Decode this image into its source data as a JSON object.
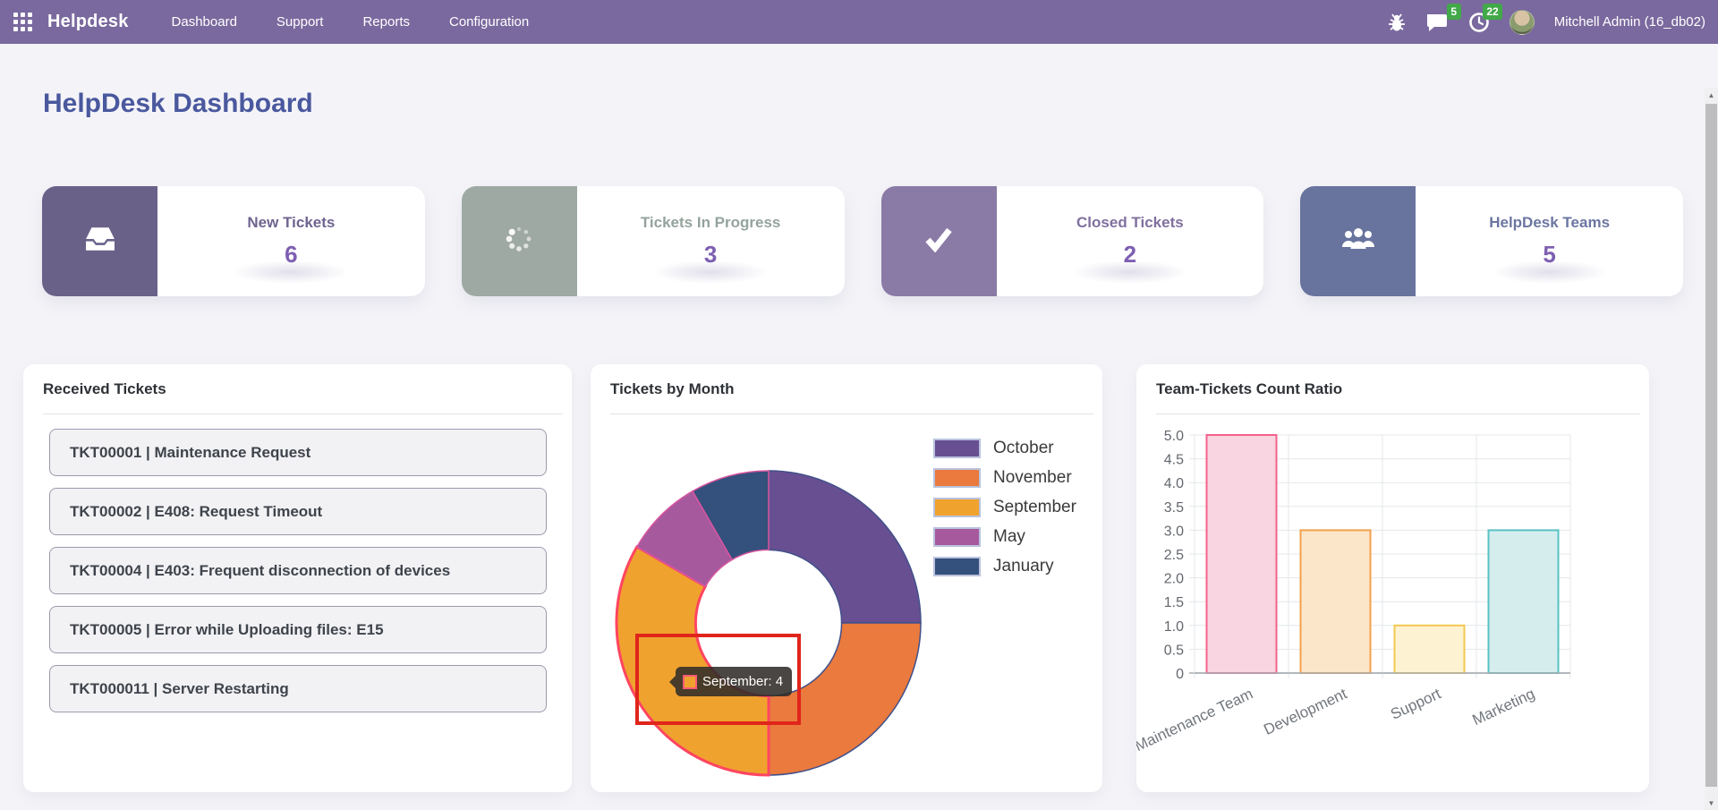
{
  "navbar": {
    "brand": "Helpdesk",
    "menu": [
      "Dashboard",
      "Support",
      "Reports",
      "Configuration"
    ],
    "badges": {
      "chat": "5",
      "activities": "22"
    },
    "user": "Mitchell Admin (16_db02)"
  },
  "page": {
    "title": "HelpDesk Dashboard"
  },
  "kpis": [
    {
      "label": "New Tickets",
      "value": "6",
      "icon": "inbox-icon",
      "accent": "#6a6189",
      "label_color": "#6f648f"
    },
    {
      "label": "Tickets In Progress",
      "value": "3",
      "icon": "spinner-icon",
      "accent": "#9fa9a3",
      "label_color": "#94a39c"
    },
    {
      "label": "Closed Tickets",
      "value": "2",
      "icon": "check-icon",
      "accent": "#8a7aa6",
      "label_color": "#80709e"
    },
    {
      "label": "HelpDesk Teams",
      "value": "5",
      "icon": "users-icon",
      "accent": "#68739e",
      "label_color": "#6b76a1"
    }
  ],
  "received": {
    "title": "Received Tickets",
    "items": [
      "TKT00001 | Maintenance Request",
      "TKT00002 | E408: Request Timeout",
      "TKT00004 | E403: Frequent disconnection of devices",
      "TKT00005 | Error while Uploading files: E15",
      "TKT000011 | Server Restarting"
    ]
  },
  "chart_data": [
    {
      "type": "pie",
      "subtype": "doughnut",
      "title": "Tickets by Month",
      "labels": [
        "October",
        "November",
        "September",
        "May",
        "January"
      ],
      "values": [
        3,
        3,
        4,
        1,
        1
      ],
      "colors": [
        "#684f92",
        "#ea7a3d",
        "#f0a22e",
        "#a7599e",
        "#34507c"
      ],
      "border_colors": [
        "#41508a",
        "#41508a",
        "#ff4560",
        "#d8569f",
        "#d8569f"
      ],
      "border_widths": [
        1.5,
        1.5,
        3,
        1.5,
        1.5
      ],
      "start_angle": "top",
      "direction": "clockwise",
      "hole_ratio": 0.48,
      "legend_position": "right",
      "highlight": {
        "label": "September",
        "value": 4,
        "tooltip": "September: 4"
      }
    },
    {
      "type": "bar",
      "title": "Team-Tickets Count Ratio",
      "categories": [
        "Maintenance Team",
        "Development",
        "Support",
        "Marketing"
      ],
      "values": [
        5,
        3,
        1,
        3
      ],
      "fill_colors": [
        "#f8d5e0",
        "#fbe6ca",
        "#fdf3d2",
        "#d6edee"
      ],
      "border_colors": [
        "#f2628c",
        "#f5a04c",
        "#f3c84f",
        "#57c1c5"
      ],
      "xlabel": "",
      "ylabel": "",
      "ylim": [
        0,
        5
      ],
      "ytick_step": 0.5,
      "grid": true,
      "x_label_rotation_deg": -25
    }
  ],
  "theme": {
    "navbar_bg": "#7a699e",
    "page_bg": "#f4f4f8",
    "title_color": "#4a589e",
    "kpi_value_color": "#7e5fb2",
    "badge_bg": "#42a948",
    "annotation_red": "#e0251b"
  },
  "scrollbar": {
    "up_glyph": "▲",
    "down_glyph": "▼"
  }
}
